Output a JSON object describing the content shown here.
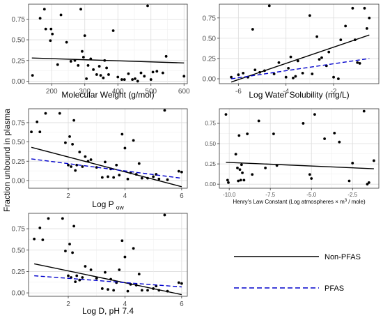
{
  "figure": {
    "ylabel": "Fraction unbound in plasma",
    "legend": {
      "entries": [
        {
          "label": "Non-PFAS",
          "color": "#000000",
          "dash": "solid"
        },
        {
          "label": "PFAS",
          "color": "#0000cc",
          "dash": "dashed"
        }
      ]
    }
  },
  "chart_data": [
    {
      "type": "scatter",
      "xlabel": "Molecular Weight (g/mol)",
      "xlim": [
        130,
        610
      ],
      "ylim": [
        -0.03,
        0.93
      ],
      "xticks": [
        200,
        300,
        400,
        500,
        600
      ],
      "xtick_labels": [
        "200",
        "300",
        "400",
        "500",
        "600"
      ],
      "yticks": [
        0,
        0.25,
        0.5,
        0.75
      ],
      "ytick_labels": [
        "0.00",
        "0.25",
        "0.50",
        "0.75"
      ],
      "points": [
        [
          142,
          0.07
        ],
        [
          165,
          0.76
        ],
        [
          178,
          0.87
        ],
        [
          182,
          0.63
        ],
        [
          196,
          0.49
        ],
        [
          198,
          0.63
        ],
        [
          202,
          0.57
        ],
        [
          218,
          0.2
        ],
        [
          228,
          0.8
        ],
        [
          245,
          0.47
        ],
        [
          258,
          0.24
        ],
        [
          270,
          0.25
        ],
        [
          280,
          0.19
        ],
        [
          288,
          0.87
        ],
        [
          292,
          0.36
        ],
        [
          296,
          0.29
        ],
        [
          300,
          0.55
        ],
        [
          305,
          0.03
        ],
        [
          310,
          0.19
        ],
        [
          318,
          0.27
        ],
        [
          326,
          0.14
        ],
        [
          336,
          0.08
        ],
        [
          344,
          0.18
        ],
        [
          348,
          0.07
        ],
        [
          356,
          0.04
        ],
        [
          360,
          0.25
        ],
        [
          366,
          0.16
        ],
        [
          372,
          0.08
        ],
        [
          386,
          0.61
        ],
        [
          400,
          0.05
        ],
        [
          412,
          0.02
        ],
        [
          420,
          0.02
        ],
        [
          432,
          0.09
        ],
        [
          444,
          0.02
        ],
        [
          452,
          0.03
        ],
        [
          460,
          0.0
        ],
        [
          470,
          0.1
        ],
        [
          480,
          0.06
        ],
        [
          490,
          0.91
        ],
        [
          500,
          0.02
        ],
        [
          506,
          0.11
        ],
        [
          518,
          0.12
        ],
        [
          536,
          0.1
        ],
        [
          546,
          0.3
        ],
        [
          600,
          0.06
        ]
      ],
      "lines": [
        {
          "series": "Non-PFAS",
          "x": [
            140,
            600
          ],
          "y": [
            0.28,
            0.22
          ]
        }
      ]
    },
    {
      "type": "scatter",
      "xlabel": "Log Water Solubility (mg/L)",
      "xlim": [
        -6.8,
        -0.1
      ],
      "ylim": [
        -0.06,
        0.92
      ],
      "xticks": [
        -6,
        -4,
        -2
      ],
      "xtick_labels": [
        "-6",
        "-4",
        "-2"
      ],
      "yticks": [
        0,
        0.25,
        0.5,
        0.75
      ],
      "ytick_labels": [
        "0.00",
        "0.25",
        "0.50",
        "0.75"
      ],
      "points": [
        [
          -6.3,
          0.02
        ],
        [
          -6.0,
          0.05
        ],
        [
          -5.8,
          0.07
        ],
        [
          -5.6,
          0.02
        ],
        [
          -5.4,
          0.61
        ],
        [
          -5.3,
          0.11
        ],
        [
          -5.1,
          0.08
        ],
        [
          -4.9,
          0.1
        ],
        [
          -4.7,
          0.9
        ],
        [
          -4.5,
          0.06
        ],
        [
          -4.3,
          0.2
        ],
        [
          -4.0,
          0.02
        ],
        [
          -3.9,
          0.13
        ],
        [
          -3.8,
          0.27
        ],
        [
          -3.7,
          0.01
        ],
        [
          -3.6,
          0.03
        ],
        [
          -3.5,
          0.22
        ],
        [
          -3.3,
          0.07
        ],
        [
          -3.0,
          0.78
        ],
        [
          -2.9,
          0.06
        ],
        [
          -2.7,
          0.52
        ],
        [
          -2.6,
          0.24
        ],
        [
          -2.5,
          0.26
        ],
        [
          -2.3,
          0.16
        ],
        [
          -2.2,
          0.33
        ],
        [
          -2.0,
          0.02
        ],
        [
          -1.8,
          0.0
        ],
        [
          -1.7,
          0.48
        ],
        [
          -1.5,
          0.65
        ],
        [
          -1.2,
          0.87
        ],
        [
          -1.1,
          0.48
        ],
        [
          -1.0,
          0.2
        ],
        [
          -0.9,
          0.19
        ],
        [
          -0.7,
          0.87
        ],
        [
          -0.6,
          0.62
        ],
        [
          -0.5,
          0.75
        ]
      ],
      "lines": [
        {
          "series": "Non-PFAS",
          "x": [
            -6.3,
            -0.5
          ],
          "y": [
            -0.04,
            0.54
          ]
        },
        {
          "series": "PFAS",
          "x": [
            -6.3,
            -0.5
          ],
          "y": [
            0.0,
            0.25
          ]
        }
      ]
    },
    {
      "type": "scatter",
      "xlabel": "Log P",
      "xlabel_sub": "ow",
      "xlim": [
        0.6,
        6.2
      ],
      "ylim": [
        -0.1,
        0.93
      ],
      "xticks": [
        2,
        4,
        6
      ],
      "xtick_labels": [
        "2",
        "4",
        "6"
      ],
      "yticks": [
        0,
        0.25,
        0.5,
        0.75
      ],
      "ytick_labels": [
        "0.00",
        "0.25",
        "0.50",
        "0.75"
      ],
      "points": [
        [
          0.7,
          0.63
        ],
        [
          0.9,
          0.76
        ],
        [
          1.0,
          0.63
        ],
        [
          1.2,
          0.87
        ],
        [
          1.7,
          0.87
        ],
        [
          1.9,
          0.49
        ],
        [
          2.0,
          0.2
        ],
        [
          2.05,
          0.57
        ],
        [
          2.1,
          0.18
        ],
        [
          2.15,
          0.47
        ],
        [
          2.2,
          0.78
        ],
        [
          2.25,
          0.13
        ],
        [
          2.3,
          0.2
        ],
        [
          2.4,
          0.37
        ],
        [
          2.5,
          0.18
        ],
        [
          2.6,
          0.31
        ],
        [
          2.7,
          0.25
        ],
        [
          2.8,
          0.27
        ],
        [
          3.0,
          0.17
        ],
        [
          3.2,
          0.04
        ],
        [
          3.3,
          0.24
        ],
        [
          3.4,
          0.05
        ],
        [
          3.5,
          0.15
        ],
        [
          3.6,
          0.04
        ],
        [
          3.7,
          0.2
        ],
        [
          3.8,
          0.07
        ],
        [
          3.9,
          0.6
        ],
        [
          4.0,
          0.42
        ],
        [
          4.1,
          0.02
        ],
        [
          4.2,
          0.1
        ],
        [
          4.3,
          0.52
        ],
        [
          4.4,
          0.08
        ],
        [
          4.5,
          0.22
        ],
        [
          4.6,
          0.03
        ],
        [
          4.8,
          0.03
        ],
        [
          5.0,
          0.05
        ],
        [
          5.1,
          0.08
        ],
        [
          5.2,
          0.02
        ],
        [
          5.4,
          0.91
        ],
        [
          5.5,
          0.01
        ],
        [
          5.9,
          0.12
        ],
        [
          6.0,
          0.11
        ]
      ],
      "lines": [
        {
          "series": "Non-PFAS",
          "x": [
            0.7,
            6.0
          ],
          "y": [
            0.43,
            -0.08
          ]
        },
        {
          "series": "PFAS",
          "x": [
            0.7,
            6.0
          ],
          "y": [
            0.28,
            0.03
          ]
        }
      ]
    },
    {
      "type": "scatter",
      "xlabel": "Henry's Law Constant (Log atmospheres × m",
      "xlabel_sup": "3",
      "xlabel_end": "/ mole)",
      "xlim": [
        -10.6,
        -0.9
      ],
      "ylim": [
        -0.05,
        0.93
      ],
      "xticks": [
        -10,
        -7.5,
        -5,
        -2.5
      ],
      "xtick_labels": [
        "-10.0",
        "-7.5",
        "-5.0",
        "-2.5"
      ],
      "yticks": [
        0,
        0.25,
        0.5,
        0.75
      ],
      "ytick_labels": [
        "0.00",
        "0.25",
        "0.50",
        "0.75"
      ],
      "points": [
        [
          -10.2,
          0.86
        ],
        [
          -10.1,
          0.05
        ],
        [
          -10.05,
          0.02
        ],
        [
          -9.6,
          0.37
        ],
        [
          -9.5,
          0.2
        ],
        [
          -9.45,
          0.04
        ],
        [
          -9.4,
          0.6
        ],
        [
          -9.35,
          0.18
        ],
        [
          -9.3,
          0.05
        ],
        [
          -9.25,
          0.24
        ],
        [
          -9.2,
          0.14
        ],
        [
          -9.1,
          0.05
        ],
        [
          -8.9,
          0.62
        ],
        [
          -8.6,
          0.12
        ],
        [
          -8.2,
          0.78
        ],
        [
          -7.8,
          0.2
        ],
        [
          -7.3,
          0.62
        ],
        [
          -7.1,
          0.23
        ],
        [
          -5.5,
          0.75
        ],
        [
          -5.1,
          0.12
        ],
        [
          -5.0,
          0.07
        ],
        [
          -4.8,
          0.86
        ],
        [
          -4.2,
          0.56
        ],
        [
          -3.6,
          0.63
        ],
        [
          -3.3,
          0.52
        ],
        [
          -2.7,
          0.04
        ],
        [
          -2.5,
          0.26
        ],
        [
          -1.8,
          0.9
        ],
        [
          -1.6,
          0.0
        ],
        [
          -1.5,
          0.02
        ],
        [
          -1.2,
          0.29
        ]
      ],
      "lines": [
        {
          "series": "Non-PFAS",
          "x": [
            -10.2,
            -1.2
          ],
          "y": [
            0.27,
            0.19
          ]
        }
      ]
    },
    {
      "type": "scatter",
      "xlabel": "Log D, pH 7.4",
      "xlim": [
        0.6,
        6.2
      ],
      "ylim": [
        -0.04,
        0.93
      ],
      "xticks": [
        2,
        4,
        6
      ],
      "xtick_labels": [
        "2",
        "4",
        "6"
      ],
      "yticks": [
        0,
        0.25,
        0.5,
        0.75
      ],
      "ytick_labels": [
        "0.00",
        "0.25",
        "0.50",
        "0.75"
      ],
      "points": [
        [
          0.8,
          0.63
        ],
        [
          1.0,
          0.76
        ],
        [
          1.1,
          0.62
        ],
        [
          1.3,
          0.87
        ],
        [
          1.8,
          0.87
        ],
        [
          1.9,
          0.49
        ],
        [
          2.0,
          0.2
        ],
        [
          2.05,
          0.57
        ],
        [
          2.1,
          0.18
        ],
        [
          2.15,
          0.47
        ],
        [
          2.2,
          0.78
        ],
        [
          2.25,
          0.13
        ],
        [
          2.3,
          0.2
        ],
        [
          2.4,
          0.15
        ],
        [
          2.5,
          0.18
        ],
        [
          2.6,
          0.31
        ],
        [
          2.8,
          0.27
        ],
        [
          3.0,
          0.17
        ],
        [
          3.2,
          0.05
        ],
        [
          3.3,
          0.24
        ],
        [
          3.4,
          0.04
        ],
        [
          3.5,
          0.16
        ],
        [
          3.6,
          0.03
        ],
        [
          3.7,
          0.12
        ],
        [
          3.8,
          0.27
        ],
        [
          3.9,
          0.61
        ],
        [
          4.0,
          0.42
        ],
        [
          4.1,
          0.02
        ],
        [
          4.2,
          0.1
        ],
        [
          4.3,
          0.52
        ],
        [
          4.4,
          0.09
        ],
        [
          4.5,
          0.22
        ],
        [
          4.6,
          0.03
        ],
        [
          4.8,
          0.03
        ],
        [
          5.0,
          0.05
        ],
        [
          5.1,
          0.08
        ],
        [
          5.2,
          0.03
        ],
        [
          5.4,
          0.91
        ],
        [
          5.5,
          0.02
        ],
        [
          5.9,
          0.12
        ],
        [
          6.0,
          0.11
        ]
      ],
      "lines": [
        {
          "series": "Non-PFAS",
          "x": [
            0.8,
            6.0
          ],
          "y": [
            0.34,
            -0.02
          ]
        },
        {
          "series": "PFAS",
          "x": [
            0.8,
            6.0
          ],
          "y": [
            0.2,
            0.07
          ]
        }
      ]
    }
  ]
}
